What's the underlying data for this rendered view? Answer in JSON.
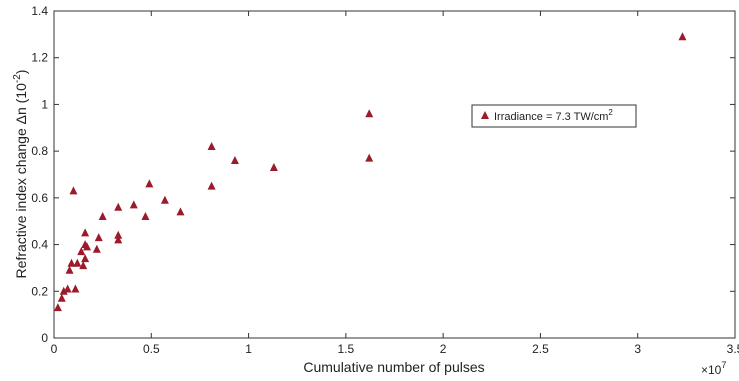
{
  "chart_data": {
    "type": "scatter",
    "title": "",
    "xlabel": "Cumulative number of pulses",
    "ylabel": "Refractive index change Δn (10",
    "ylabel_exp": "-2",
    "ylabel_close": ")",
    "x_multiplier": "×10",
    "x_multiplier_exp": "7",
    "xlim": [
      0,
      3.5
    ],
    "ylim": [
      0,
      1.4
    ],
    "xticks": [
      "0",
      "0.5",
      "1",
      "1.5",
      "2",
      "2.5",
      "3",
      "3.5"
    ],
    "yticks": [
      "0",
      "0.2",
      "0.4",
      "0.6",
      "0.8",
      "1",
      "1.2",
      "1.4"
    ],
    "xtick_values": [
      0,
      0.5,
      1,
      1.5,
      2,
      2.5,
      3,
      3.5
    ],
    "ytick_values": [
      0,
      0.2,
      0.4,
      0.6,
      0.8,
      1.0,
      1.2,
      1.4
    ],
    "grid": false,
    "legend_position": "right",
    "marker_color": "#9b1b2a",
    "series": [
      {
        "name": "Irradiance = 7.3 TW/cm",
        "name_exp": "2",
        "marker": "triangle",
        "x": [
          0.02,
          0.04,
          0.05,
          0.07,
          0.08,
          0.09,
          0.1,
          0.11,
          0.12,
          0.14,
          0.15,
          0.16,
          0.16,
          0.16,
          0.17,
          0.22,
          0.23,
          0.25,
          0.33,
          0.33,
          0.33,
          0.41,
          0.47,
          0.49,
          0.57,
          0.65,
          0.81,
          0.81,
          0.93,
          1.13,
          1.62,
          1.62,
          3.23
        ],
        "y": [
          0.13,
          0.17,
          0.2,
          0.21,
          0.29,
          0.32,
          0.63,
          0.21,
          0.32,
          0.37,
          0.31,
          0.34,
          0.4,
          0.45,
          0.39,
          0.38,
          0.43,
          0.52,
          0.42,
          0.44,
          0.56,
          0.57,
          0.52,
          0.66,
          0.59,
          0.54,
          0.65,
          0.82,
          0.76,
          0.73,
          0.77,
          0.96,
          1.29
        ]
      }
    ]
  }
}
